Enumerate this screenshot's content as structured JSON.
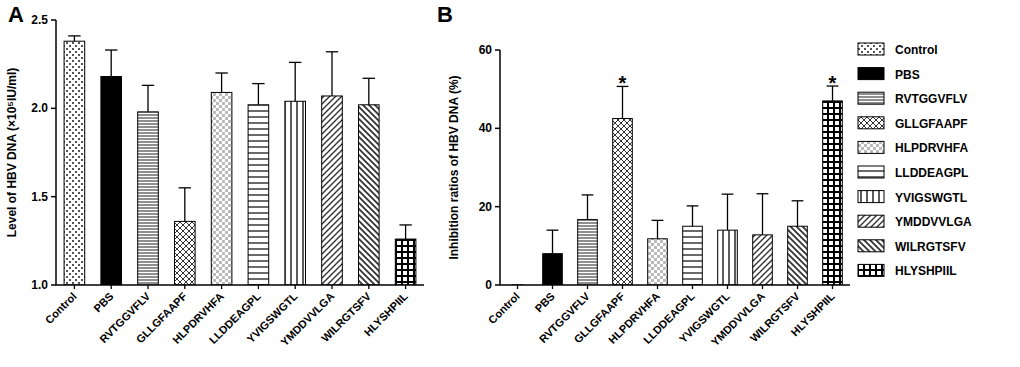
{
  "chart_data": [
    {
      "type": "bar",
      "title": "A",
      "y_label": "Level of HBV DNA (×10⁵IU/ml)",
      "categories": [
        "Control",
        "PBS",
        "RVTGGVFLV",
        "GLLGFAAPF",
        "HLPDRVHFA",
        "LLDDEAGPL",
        "YVIGSWGTL",
        "YMDDVVLGA",
        "WILRGTSFV",
        "HLYSHPIIL"
      ],
      "values": [
        2.38,
        2.18,
        1.98,
        1.36,
        2.09,
        2.02,
        2.04,
        2.07,
        2.02,
        1.26
      ],
      "errors": [
        0.03,
        0.15,
        0.15,
        0.19,
        0.11,
        0.12,
        0.22,
        0.25,
        0.15,
        0.08
      ],
      "colors": [
        "#555555",
        "#000000",
        "#444444",
        "#333333",
        "#777777",
        "#444444",
        "#333333",
        "#333333",
        "#333333",
        "#000000"
      ],
      "ylim": [
        1,
        2.5
      ],
      "yticks": [
        {
          "value": 1,
          "label": "1.0"
        },
        1.5,
        {
          "value": 2,
          "label": "2.0"
        },
        2.5
      ],
      "legend": "right"
    },
    {
      "type": "bar",
      "title": "B",
      "y_label": "Inhibition ratios of HBV DNA (%)",
      "categories": [
        "Control",
        "PBS",
        "RVTGGVFLV",
        "GLLGFAAPF",
        "HLPDRVHFA",
        "LLDDEAGPL",
        "YVIGSWGTL",
        "YMDDVVLGA",
        "WILRGTSFV",
        "HLYSHPIIL"
      ],
      "values": [
        0,
        8,
        16.7,
        42.5,
        11.8,
        15,
        14,
        12.8,
        15,
        47
      ],
      "errors": [
        0,
        6,
        6.3,
        8.2,
        4.7,
        5.2,
        9.2,
        10.5,
        6.5,
        3.8
      ],
      "colors": [
        "#555555",
        "#000000",
        "#444444",
        "#333333",
        "#777777",
        "#444444",
        "#333333",
        "#333333",
        "#333333",
        "#000000"
      ],
      "ylim": [
        0,
        60
      ],
      "yticks": [
        0,
        20,
        40,
        60
      ],
      "annotations": [
        {
          "text": "*",
          "category": "GLLGFAAPF"
        },
        {
          "text": "*",
          "category": "HLYSHPIIL"
        }
      ]
    }
  ]
}
